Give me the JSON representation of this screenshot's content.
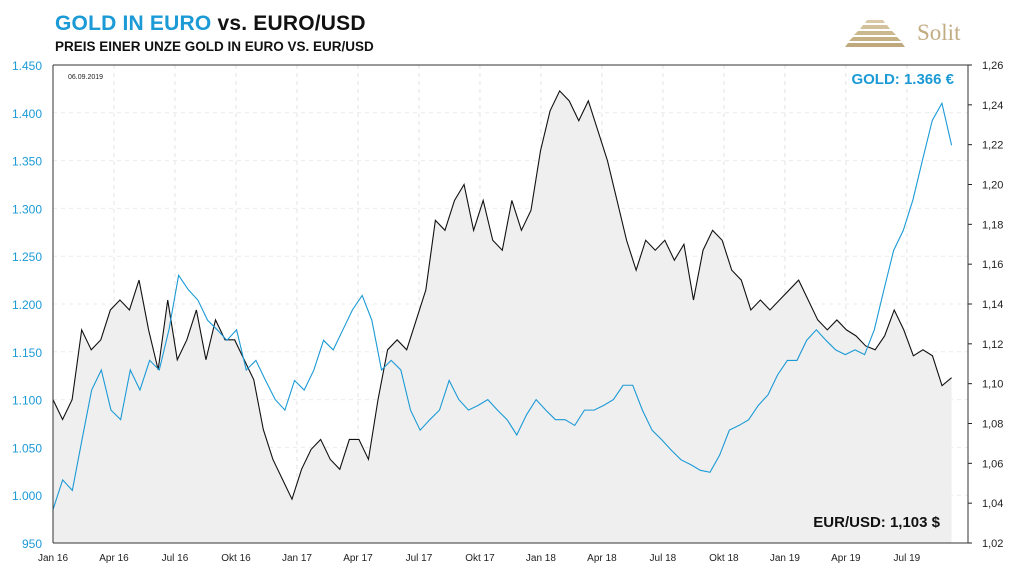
{
  "header": {
    "title_blue": "GOLD IN EURO",
    "title_black": "vs. EURO/USD",
    "subtitle": "PREIS EINER UNZE GOLD IN EURO VS. EUR/USD",
    "logo_text": "Solit"
  },
  "chart_data": {
    "type": "line",
    "title": "GOLD IN EURO vs. EURO/USD",
    "subtitle": "PREIS EINER UNZE GOLD IN EURO VS. EUR/USD",
    "date_label": "06.09.2019",
    "x_range_months": [
      0,
      44.2
    ],
    "x_ticks": [
      "Jan 16",
      "Apr 16",
      "Jul 16",
      "Okt 16",
      "Jan 17",
      "Apr 17",
      "Jul 17",
      "Okt 17",
      "Jan 18",
      "Apr 18",
      "Jul 18",
      "Okt 18",
      "Jan 19",
      "Apr 19",
      "Jul 19"
    ],
    "y_left": {
      "range": [
        950,
        1450
      ],
      "ticks": [
        "950",
        "1.000",
        "1.050",
        "1.100",
        "1.150",
        "1.200",
        "1.250",
        "1.300",
        "1.350",
        "1.400",
        "1.450"
      ],
      "color": "#1b9ad6"
    },
    "y_right": {
      "range": [
        1.02,
        1.26
      ],
      "ticks": [
        "1,02",
        "1,04",
        "1,06",
        "1,08",
        "1,10",
        "1,12",
        "1,14",
        "1,16",
        "1,18",
        "1,20",
        "1,22",
        "1,24",
        "1,26"
      ]
    },
    "grid": true,
    "series": [
      {
        "name": "Gold in Euro",
        "axis": "left",
        "color": "#1b9ad6",
        "last_label": "GOLD: 1.366 €",
        "values": [
          985,
          1016,
          1005,
          1058,
          1110,
          1131,
          1089,
          1079,
          1131,
          1110,
          1141,
          1131,
          1173,
          1230,
          1215,
          1204,
          1183,
          1173,
          1162,
          1173,
          1131,
          1141,
          1120,
          1100,
          1089,
          1120,
          1110,
          1131,
          1162,
          1152,
          1173,
          1194,
          1209,
          1183,
          1131,
          1141,
          1131,
          1089,
          1068,
          1079,
          1089,
          1120,
          1100,
          1089,
          1094,
          1100,
          1089,
          1079,
          1063,
          1084,
          1100,
          1089,
          1079,
          1079,
          1073,
          1089,
          1089,
          1094,
          1100,
          1115,
          1115,
          1089,
          1068,
          1058,
          1047,
          1037,
          1032,
          1026,
          1024,
          1042,
          1068,
          1073,
          1079,
          1094,
          1105,
          1126,
          1141,
          1141,
          1162,
          1173,
          1162,
          1152,
          1147,
          1152,
          1147,
          1173,
          1215,
          1256,
          1277,
          1309,
          1351,
          1392,
          1410,
          1366
        ]
      },
      {
        "name": "EUR/USD",
        "axis": "right",
        "color": "#111111",
        "fill": "#efefef",
        "last_label": "EUR/USD: 1,103 $",
        "values": [
          1.092,
          1.082,
          1.092,
          1.127,
          1.117,
          1.122,
          1.137,
          1.142,
          1.137,
          1.152,
          1.127,
          1.107,
          1.142,
          1.112,
          1.122,
          1.137,
          1.112,
          1.132,
          1.122,
          1.122,
          1.112,
          1.102,
          1.077,
          1.062,
          1.052,
          1.042,
          1.057,
          1.067,
          1.072,
          1.062,
          1.057,
          1.072,
          1.072,
          1.062,
          1.092,
          1.117,
          1.122,
          1.117,
          1.132,
          1.147,
          1.182,
          1.177,
          1.192,
          1.2,
          1.177,
          1.192,
          1.172,
          1.167,
          1.192,
          1.177,
          1.187,
          1.217,
          1.237,
          1.247,
          1.242,
          1.232,
          1.242,
          1.227,
          1.212,
          1.192,
          1.172,
          1.157,
          1.172,
          1.167,
          1.172,
          1.162,
          1.17,
          1.142,
          1.167,
          1.177,
          1.172,
          1.157,
          1.152,
          1.137,
          1.142,
          1.137,
          1.142,
          1.147,
          1.152,
          1.142,
          1.132,
          1.127,
          1.132,
          1.127,
          1.124,
          1.119,
          1.117,
          1.124,
          1.137,
          1.127,
          1.114,
          1.117,
          1.114,
          1.099,
          1.103
        ]
      }
    ]
  }
}
